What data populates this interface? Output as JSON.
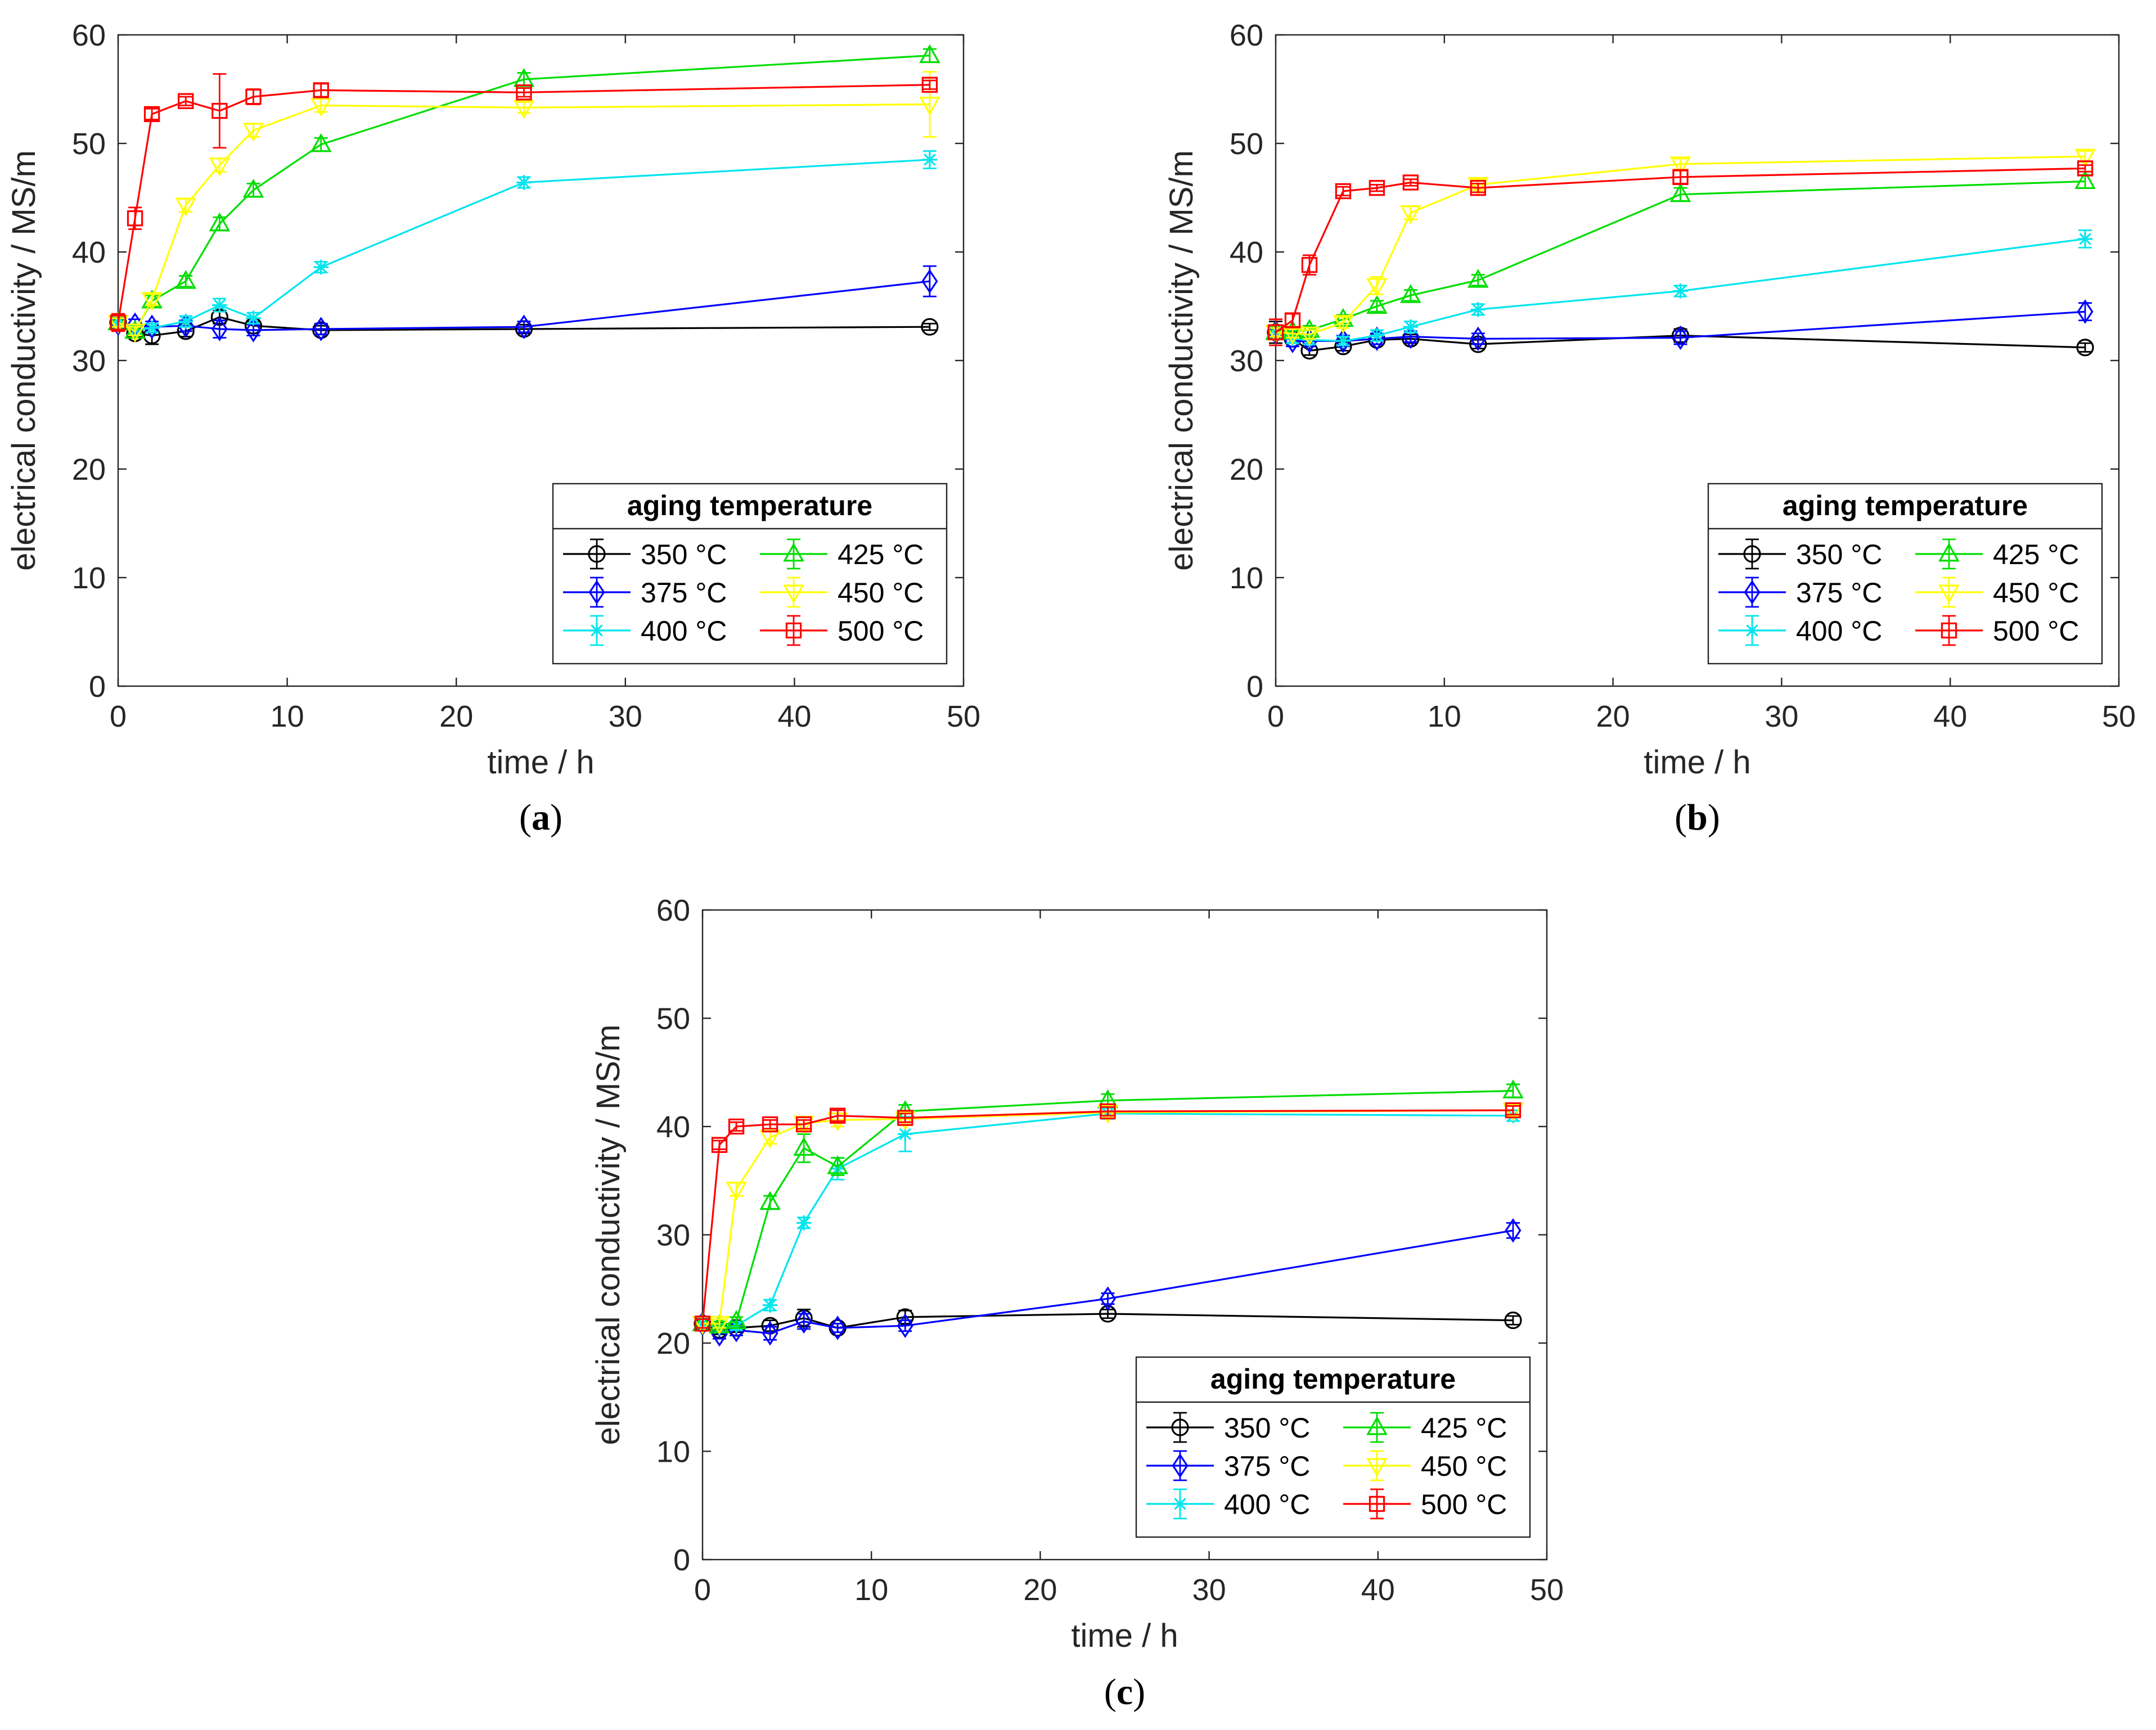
{
  "chart_data": [
    {
      "type": "line",
      "panel_label": "(a)",
      "panel_letter": "a",
      "xlabel": "time / h",
      "ylabel": "electrical conductivity / MS/m",
      "xlim": [
        0,
        50
      ],
      "ylim": [
        0,
        60
      ],
      "xticks": [
        0,
        10,
        20,
        30,
        40,
        50
      ],
      "yticks": [
        0,
        10,
        20,
        30,
        40,
        50,
        60
      ],
      "legend_title": "aging temperature",
      "legend_position": "lower-right",
      "grid": false,
      "series": [
        {
          "name": "350 °C",
          "marker": "circle",
          "color": "#000000",
          "x": [
            0,
            1,
            2,
            4,
            6,
            8,
            12,
            24,
            48
          ],
          "y": [
            33.5,
            32.5,
            32.3,
            32.7,
            34.0,
            33.2,
            32.8,
            32.9,
            33.1
          ],
          "err": [
            0.4,
            0.3,
            0.8,
            0.5,
            0.6,
            0.4,
            0.4,
            0.4,
            0.3
          ]
        },
        {
          "name": "375 °C",
          "marker": "diamond",
          "color": "#0000ff",
          "x": [
            0,
            1,
            2,
            4,
            6,
            8,
            12,
            24,
            48
          ],
          "y": [
            33.4,
            33.3,
            33.1,
            33.2,
            32.9,
            32.8,
            32.9,
            33.1,
            37.3
          ],
          "err": [
            0.5,
            0.5,
            0.5,
            0.5,
            0.8,
            0.5,
            0.5,
            0.5,
            1.4
          ]
        },
        {
          "name": "400 °C",
          "marker": "star",
          "color": "#00e5ee",
          "x": [
            0,
            1,
            2,
            4,
            6,
            8,
            12,
            24,
            48
          ],
          "y": [
            33.5,
            32.8,
            33.0,
            33.6,
            35.1,
            33.9,
            38.6,
            46.4,
            48.5
          ],
          "err": [
            0.4,
            0.4,
            0.4,
            0.5,
            0.6,
            0.5,
            0.5,
            0.5,
            0.8
          ]
        },
        {
          "name": "425 °C",
          "marker": "triangle-up",
          "color": "#00dd00",
          "x": [
            0,
            1,
            2,
            4,
            6,
            8,
            12,
            24,
            48
          ],
          "y": [
            33.5,
            32.7,
            35.5,
            37.3,
            42.6,
            45.7,
            49.9,
            55.9,
            58.1
          ],
          "err": [
            0.4,
            0.4,
            0.5,
            0.5,
            0.6,
            0.6,
            0.6,
            0.6,
            0.6
          ]
        },
        {
          "name": "450 °C",
          "marker": "triangle-down",
          "color": "#ffff00",
          "x": [
            0,
            1,
            2,
            4,
            6,
            8,
            12,
            24,
            48
          ],
          "y": [
            33.5,
            32.7,
            35.6,
            44.3,
            48.0,
            51.2,
            53.5,
            53.3,
            53.6
          ],
          "err": [
            0.4,
            0.4,
            0.5,
            0.6,
            0.6,
            0.6,
            0.6,
            0.5,
            3.0
          ]
        },
        {
          "name": "500 °C",
          "marker": "square",
          "color": "#ff0000",
          "x": [
            0,
            1,
            2,
            4,
            6,
            8,
            12,
            24,
            48
          ],
          "y": [
            33.5,
            43.1,
            52.7,
            53.9,
            53.0,
            54.3,
            54.9,
            54.7,
            55.4
          ],
          "err": [
            0.8,
            1.0,
            0.5,
            0.4,
            3.4,
            0.7,
            0.6,
            0.4,
            0.4
          ]
        }
      ]
    },
    {
      "type": "line",
      "panel_label": "(b)",
      "panel_letter": "b",
      "xlabel": "time / h",
      "ylabel": "electrical conductivity / MS/m",
      "xlim": [
        0,
        50
      ],
      "ylim": [
        0,
        60
      ],
      "xticks": [
        0,
        10,
        20,
        30,
        40,
        50
      ],
      "yticks": [
        0,
        10,
        20,
        30,
        40,
        50,
        60
      ],
      "legend_title": "aging temperature",
      "legend_position": "lower-right",
      "grid": false,
      "series": [
        {
          "name": "350 °C",
          "marker": "circle",
          "color": "#000000",
          "x": [
            0,
            1,
            2,
            4,
            6,
            8,
            12,
            24,
            48
          ],
          "y": [
            32.6,
            32.0,
            30.9,
            31.3,
            31.9,
            32.0,
            31.5,
            32.3,
            31.2
          ],
          "err": [
            1.0,
            0.4,
            0.4,
            0.4,
            0.4,
            0.4,
            0.4,
            0.6,
            0.4
          ]
        },
        {
          "name": "375 °C",
          "marker": "diamond",
          "color": "#0000ff",
          "x": [
            0,
            1,
            2,
            4,
            6,
            8,
            12,
            24,
            48
          ],
          "y": [
            32.6,
            31.8,
            31.8,
            31.8,
            32.0,
            32.2,
            32.0,
            32.1,
            34.5
          ],
          "err": [
            0.5,
            0.5,
            0.5,
            0.5,
            0.5,
            0.5,
            0.5,
            0.6,
            0.8
          ]
        },
        {
          "name": "400 °C",
          "marker": "star",
          "color": "#00e5ee",
          "x": [
            0,
            1,
            2,
            4,
            6,
            8,
            12,
            24,
            48
          ],
          "y": [
            32.6,
            32.0,
            31.9,
            31.8,
            32.3,
            33.1,
            34.7,
            36.4,
            41.2
          ],
          "err": [
            0.4,
            0.4,
            0.4,
            0.4,
            0.5,
            0.5,
            0.5,
            0.5,
            0.8
          ]
        },
        {
          "name": "425 °C",
          "marker": "triangle-up",
          "color": "#00dd00",
          "x": [
            0,
            1,
            2,
            4,
            6,
            8,
            12,
            24,
            48
          ],
          "y": [
            32.6,
            32.7,
            32.8,
            33.8,
            35.0,
            36.0,
            37.4,
            45.3,
            46.5
          ],
          "err": [
            0.4,
            0.4,
            0.4,
            0.4,
            0.5,
            0.5,
            0.5,
            0.6,
            0.6
          ]
        },
        {
          "name": "450 °C",
          "marker": "triangle-down",
          "color": "#ffff00",
          "x": [
            0,
            1,
            2,
            4,
            6,
            8,
            12,
            24,
            48
          ],
          "y": [
            32.6,
            32.5,
            32.4,
            33.5,
            36.9,
            43.6,
            46.2,
            48.1,
            48.8
          ],
          "err": [
            0.4,
            0.4,
            0.4,
            0.5,
            0.8,
            0.6,
            0.5,
            0.5,
            0.5
          ]
        },
        {
          "name": "500 °C",
          "marker": "square",
          "color": "#ff0000",
          "x": [
            0,
            1,
            2,
            4,
            6,
            8,
            12,
            24,
            48
          ],
          "y": [
            32.6,
            33.7,
            38.8,
            45.6,
            45.9,
            46.4,
            45.9,
            46.9,
            47.7
          ],
          "err": [
            1.2,
            0.6,
            0.9,
            0.4,
            0.3,
            0.3,
            0.4,
            0.6,
            0.3
          ]
        }
      ]
    },
    {
      "type": "line",
      "panel_label": "(c)",
      "panel_letter": "c",
      "xlabel": "time / h",
      "ylabel": "electrical conductivity / MS/m",
      "xlim": [
        0,
        50
      ],
      "ylim": [
        0,
        60
      ],
      "xticks": [
        0,
        10,
        20,
        30,
        40,
        50
      ],
      "yticks": [
        0,
        10,
        20,
        30,
        40,
        50,
        60
      ],
      "legend_title": "aging temperature",
      "legend_position": "lower-right",
      "grid": false,
      "series": [
        {
          "name": "350 °C",
          "marker": "circle",
          "color": "#000000",
          "x": [
            0,
            1,
            2,
            4,
            6,
            8,
            12,
            24,
            48
          ],
          "y": [
            21.8,
            21.2,
            21.4,
            21.6,
            22.3,
            21.4,
            22.4,
            22.7,
            22.1
          ],
          "err": [
            0.4,
            0.4,
            0.4,
            0.5,
            0.8,
            0.4,
            0.6,
            0.4,
            0.4
          ]
        },
        {
          "name": "375 °C",
          "marker": "diamond",
          "color": "#0000ff",
          "x": [
            0,
            1,
            2,
            4,
            6,
            8,
            12,
            24,
            48
          ],
          "y": [
            21.8,
            20.8,
            21.2,
            20.9,
            22.0,
            21.4,
            21.6,
            24.1,
            30.4
          ],
          "err": [
            0.4,
            0.4,
            0.5,
            0.6,
            0.7,
            0.4,
            0.5,
            0.5,
            0.7
          ]
        },
        {
          "name": "400 °C",
          "marker": "star",
          "color": "#00e5ee",
          "x": [
            0,
            1,
            2,
            4,
            6,
            8,
            12,
            24,
            48
          ],
          "y": [
            21.8,
            21.4,
            21.6,
            23.5,
            31.1,
            36.1,
            39.3,
            41.2,
            41.0
          ],
          "err": [
            0.4,
            0.4,
            0.4,
            0.5,
            0.5,
            1.0,
            1.6,
            0.5,
            0.5
          ]
        },
        {
          "name": "425 °C",
          "marker": "triangle-up",
          "color": "#00dd00",
          "x": [
            0,
            1,
            2,
            4,
            6,
            8,
            12,
            24,
            48
          ],
          "y": [
            21.8,
            21.6,
            22.0,
            33.0,
            38.0,
            36.3,
            41.4,
            42.4,
            43.3
          ],
          "err": [
            0.4,
            0.4,
            0.4,
            0.6,
            1.3,
            0.8,
            0.6,
            0.6,
            0.6
          ]
        },
        {
          "name": "450 °C",
          "marker": "triangle-down",
          "color": "#ffff00",
          "x": [
            0,
            1,
            2,
            4,
            6,
            8,
            12,
            24,
            48
          ],
          "y": [
            21.8,
            21.8,
            34.2,
            39.0,
            40.3,
            40.6,
            40.7,
            41.3,
            41.5
          ],
          "err": [
            0.4,
            0.4,
            0.6,
            0.6,
            0.6,
            0.6,
            0.6,
            0.5,
            0.5
          ]
        },
        {
          "name": "500 °C",
          "marker": "square",
          "color": "#ff0000",
          "x": [
            0,
            1,
            2,
            4,
            6,
            8,
            12,
            24,
            48
          ],
          "y": [
            21.8,
            38.3,
            40.0,
            40.2,
            40.2,
            41.0,
            40.8,
            41.4,
            41.5
          ],
          "err": [
            0.4,
            0.4,
            0.4,
            0.4,
            0.4,
            0.5,
            0.4,
            0.4,
            0.4
          ]
        }
      ]
    }
  ]
}
